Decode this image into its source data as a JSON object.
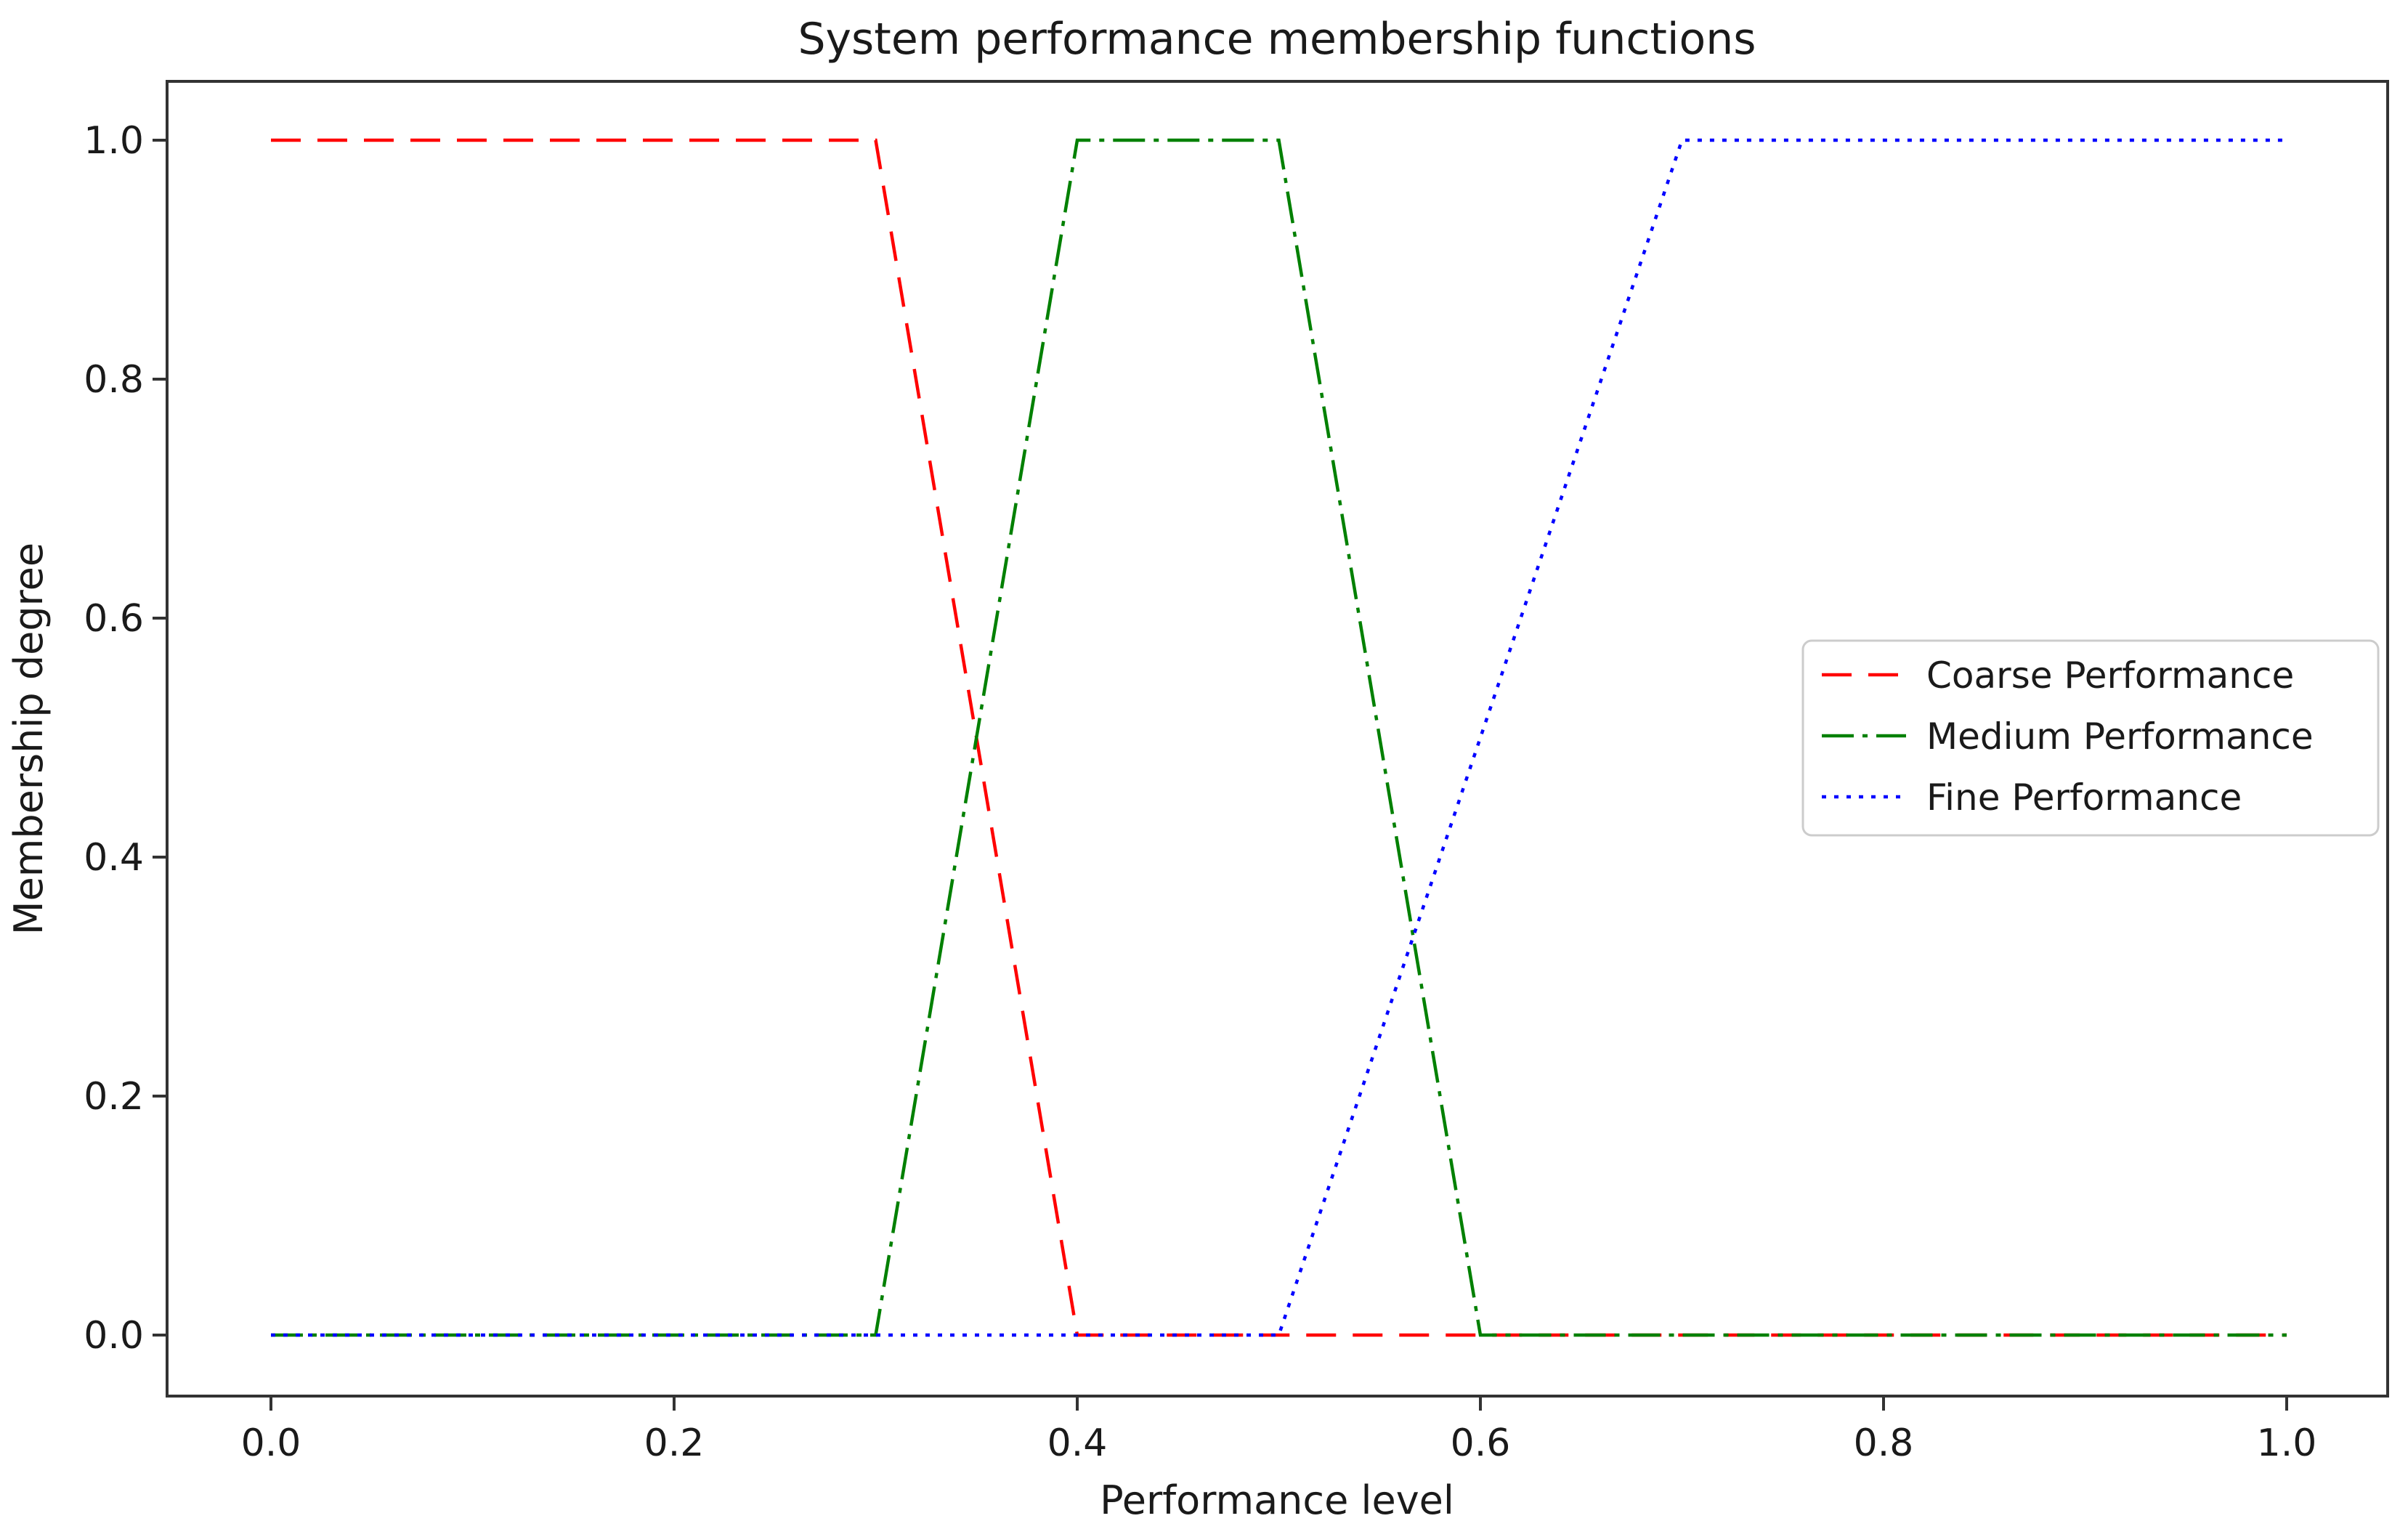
{
  "chart_data": {
    "type": "line",
    "title": "System performance membership functions",
    "xlabel": "Performance level",
    "ylabel": "Membership degree",
    "xlim": [
      0.0,
      1.0
    ],
    "ylim": [
      0.0,
      1.0
    ],
    "grid": false,
    "legend_position": "center right",
    "xticks": {
      "values": [
        0.0,
        0.2,
        0.4,
        0.6,
        0.8,
        1.0
      ],
      "labels": [
        "0.0",
        "0.2",
        "0.4",
        "0.6",
        "0.8",
        "1.0"
      ]
    },
    "yticks": {
      "values": [
        0.0,
        0.2,
        0.4,
        0.6,
        0.8,
        1.0
      ],
      "labels": [
        "0.0",
        "0.2",
        "0.4",
        "0.6",
        "0.8",
        "1.0"
      ]
    },
    "series": [
      {
        "name": "Coarse Performance",
        "color": "#ff0000",
        "linestyle": "dashed",
        "points": [
          [
            0.0,
            1.0
          ],
          [
            0.3,
            1.0
          ],
          [
            0.4,
            0.0
          ],
          [
            1.0,
            0.0
          ]
        ]
      },
      {
        "name": "Medium Performance",
        "color": "#008000",
        "linestyle": "dashdot",
        "points": [
          [
            0.0,
            0.0
          ],
          [
            0.3,
            0.0
          ],
          [
            0.4,
            1.0
          ],
          [
            0.5,
            1.0
          ],
          [
            0.6,
            0.0
          ],
          [
            1.0,
            0.0
          ]
        ]
      },
      {
        "name": "Fine Performance",
        "color": "#0000ff",
        "linestyle": "dotted",
        "points": [
          [
            0.0,
            0.0
          ],
          [
            0.5,
            0.0
          ],
          [
            0.7,
            1.0
          ],
          [
            1.0,
            1.0
          ]
        ]
      }
    ]
  }
}
